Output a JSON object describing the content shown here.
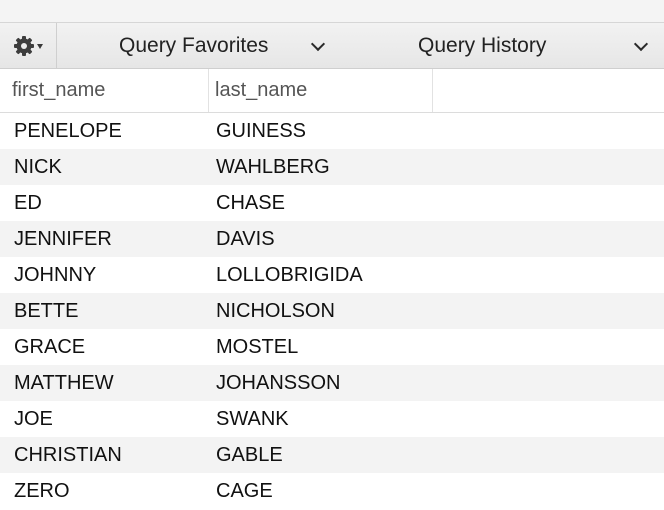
{
  "toolbar": {
    "gear_icon": "gear-icon",
    "query_favorites_label": "Query Favorites",
    "query_history_label": "Query History"
  },
  "table": {
    "columns": [
      "first_name",
      "last_name"
    ],
    "rows": [
      [
        "PENELOPE",
        "GUINESS"
      ],
      [
        "NICK",
        "WAHLBERG"
      ],
      [
        "ED",
        "CHASE"
      ],
      [
        "JENNIFER",
        "DAVIS"
      ],
      [
        "JOHNNY",
        "LOLLOBRIGIDA"
      ],
      [
        "BETTE",
        "NICHOLSON"
      ],
      [
        "GRACE",
        "MOSTEL"
      ],
      [
        "MATTHEW",
        "JOHANSSON"
      ],
      [
        "JOE",
        "SWANK"
      ],
      [
        "CHRISTIAN",
        "GABLE"
      ],
      [
        "ZERO",
        "CAGE"
      ]
    ]
  }
}
